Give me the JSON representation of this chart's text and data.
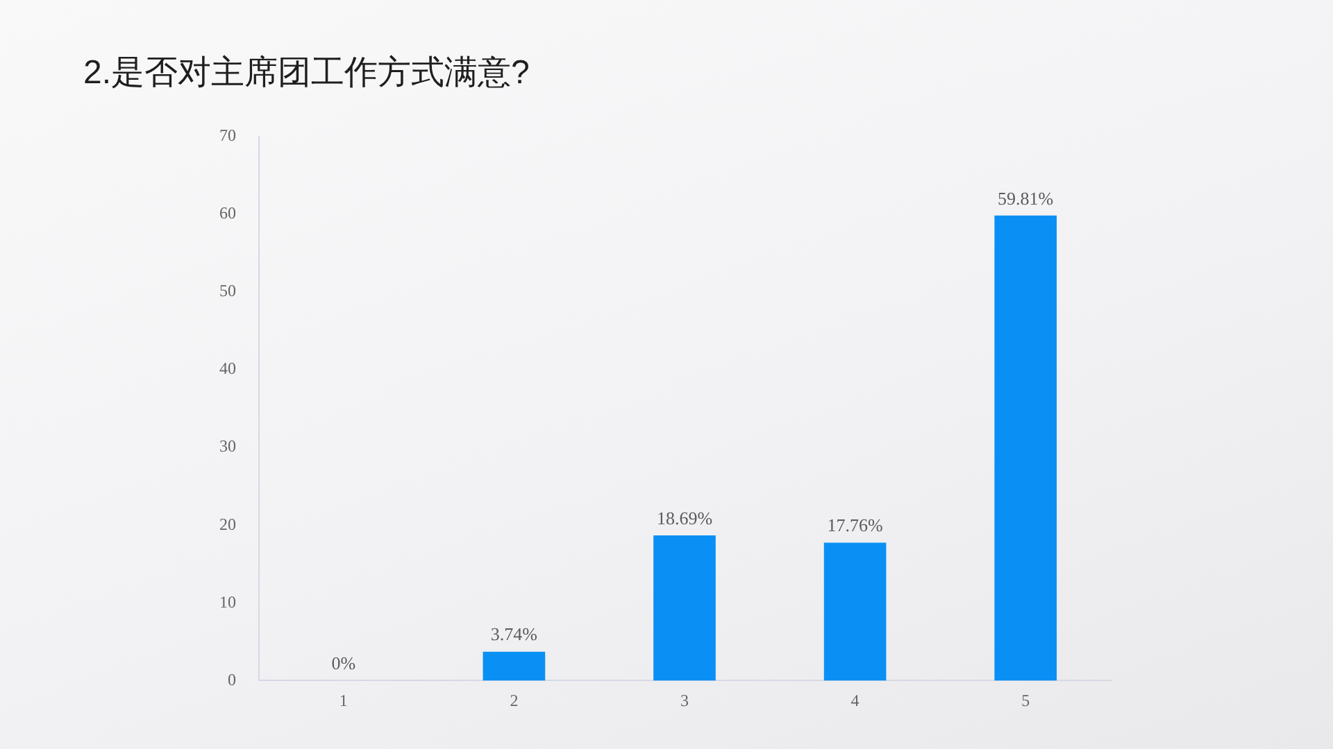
{
  "chart_data": {
    "type": "bar",
    "title": "2.是否对主席团工作方式满意?",
    "categories": [
      "1",
      "2",
      "3",
      "4",
      "5"
    ],
    "values": [
      0,
      3.74,
      18.69,
      17.76,
      59.81
    ],
    "value_labels": [
      "0%",
      "3.74%",
      "18.69%",
      "17.76%",
      "59.81%"
    ],
    "color": "#0a90f5",
    "ylim": [
      0,
      70
    ],
    "yticks": [
      0,
      10,
      20,
      30,
      40,
      50,
      60,
      70
    ]
  }
}
